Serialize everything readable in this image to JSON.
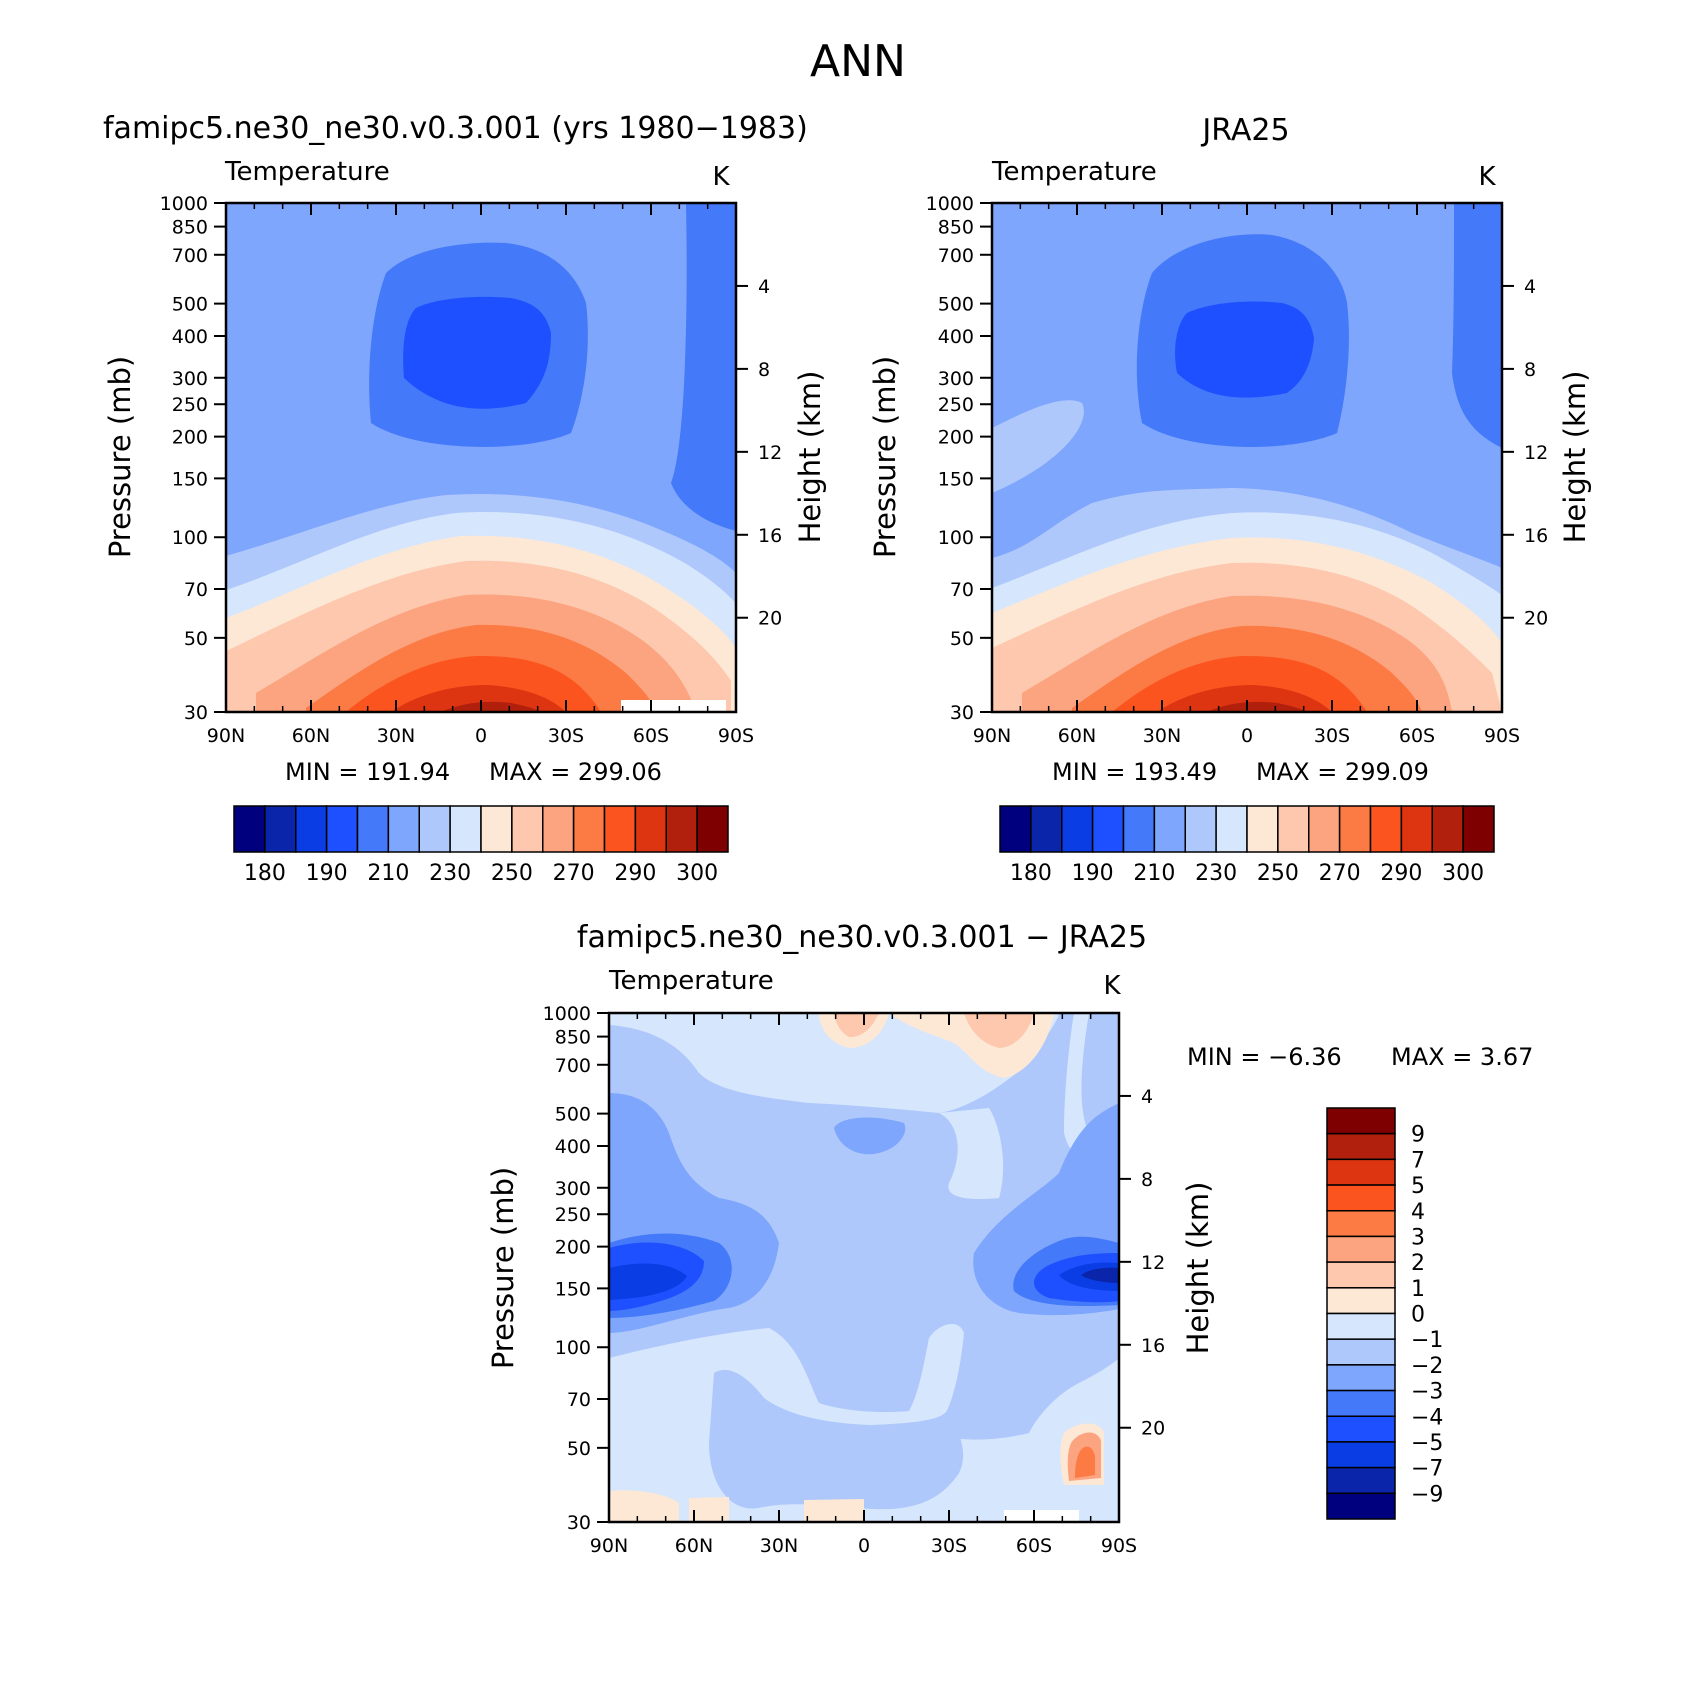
{
  "page_title": "ANN",
  "chart_data": [
    {
      "type": "heatmap",
      "title": "famipc5.ne30_ne30.v0.3.001 (yrs 1980−1983)",
      "variable": "Temperature",
      "units": "K",
      "ylabel": "Pressure (mb)",
      "ylabel_right": "Height (km)",
      "x_ticks": [
        "90N",
        "60N",
        "30N",
        "0",
        "30S",
        "60S",
        "90S"
      ],
      "y_ticks": [
        "30",
        "50",
        "70",
        "100",
        "150",
        "200",
        "250",
        "300",
        "400",
        "500",
        "700",
        "850",
        "1000"
      ],
      "y_ticks_right": [
        "20",
        "16",
        "12",
        "8",
        "4"
      ],
      "ylim": [
        1000,
        30
      ],
      "y_scale": "log",
      "min_label": "MIN = 191.94",
      "max_label": "MAX = 299.06",
      "min": 191.94,
      "max": 299.06,
      "colorbar": {
        "orientation": "horizontal",
        "labels": [
          "180",
          "190",
          "210",
          "230",
          "250",
          "270",
          "290",
          "300"
        ]
      },
      "contours": [
        {
          "color": "#1e50ff",
          "points": [
            [
              -0.12,
              1.02
            ],
            [
              -0.02,
              1.15
            ],
            [
              0.08,
              1.2
            ],
            [
              0.3,
              1.22
            ],
            [
              0.55,
              1.22
            ],
            [
              0.75,
              1.2
            ],
            [
              0.85,
              1.15
            ],
            [
              0.95,
              1.02
            ],
            [
              0.95,
              -0.1
            ],
            [
              0.8,
              -0.2
            ],
            [
              0.5,
              -0.25
            ],
            [
              0.1,
              -0.25
            ],
            [
              -0.05,
              -0.2
            ],
            [
              -0.12,
              -0.1
            ]
          ]
        }
      ]
    },
    {
      "type": "heatmap",
      "title": "JRA25",
      "variable": "Temperature",
      "units": "K",
      "ylabel": "Pressure (mb)",
      "ylabel_right": "Height (km)",
      "x_ticks": [
        "90N",
        "60N",
        "30N",
        "0",
        "30S",
        "60S",
        "90S"
      ],
      "y_ticks": [
        "30",
        "50",
        "70",
        "100",
        "150",
        "200",
        "250",
        "300",
        "400",
        "500",
        "700",
        "850",
        "1000"
      ],
      "y_ticks_right": [
        "20",
        "16",
        "12",
        "8",
        "4"
      ],
      "ylim": [
        1000,
        30
      ],
      "y_scale": "log",
      "min_label": "MIN = 193.49",
      "max_label": "MAX = 299.09",
      "min": 193.49,
      "max": 299.09,
      "colorbar": {
        "orientation": "horizontal",
        "labels": [
          "180",
          "190",
          "210",
          "230",
          "250",
          "270",
          "290",
          "300"
        ]
      }
    },
    {
      "type": "heatmap",
      "title": "famipc5.ne30_ne30.v0.3.001 − JRA25",
      "variable": "Temperature",
      "units": "K",
      "ylabel": "Pressure (mb)",
      "ylabel_right": "Height (km)",
      "x_ticks": [
        "90N",
        "60N",
        "30N",
        "0",
        "30S",
        "60S",
        "90S"
      ],
      "y_ticks": [
        "30",
        "50",
        "70",
        "100",
        "150",
        "200",
        "250",
        "300",
        "400",
        "500",
        "700",
        "850",
        "1000"
      ],
      "y_ticks_right": [
        "20",
        "16",
        "12",
        "8",
        "4"
      ],
      "ylim": [
        1000,
        30
      ],
      "y_scale": "log",
      "min_label": "MIN = −6.36",
      "max_label": "MAX = 3.67",
      "min": -6.36,
      "max": 3.67,
      "colorbar": {
        "orientation": "vertical",
        "labels": [
          "9",
          "7",
          "5",
          "4",
          "3",
          "2",
          "1",
          "0",
          "−1",
          "−2",
          "−3",
          "−4",
          "−5",
          "−7",
          "−9"
        ]
      }
    }
  ],
  "colors": {
    "temp_colorbar": [
      "#00007f",
      "#0a24aa",
      "#0b3de4",
      "#1e50ff",
      "#4479f9",
      "#7ea6fc",
      "#afc8fc",
      "#d6e6fc",
      "#fde8d6",
      "#fdc8ad",
      "#fca37f",
      "#fc7a44",
      "#fc541e",
      "#dd3411",
      "#b0200c",
      "#7f0000"
    ],
    "diff_colorbar_top_to_bottom": [
      "#7f0000",
      "#b0200c",
      "#dd3411",
      "#fc541e",
      "#fc7a44",
      "#fca37f",
      "#fdc8ad",
      "#fde8d6",
      "#d6e6fc",
      "#afc8fc",
      "#7ea6fc",
      "#4479f9",
      "#1e50ff",
      "#0b3de4",
      "#0a24aa",
      "#00007f"
    ]
  }
}
